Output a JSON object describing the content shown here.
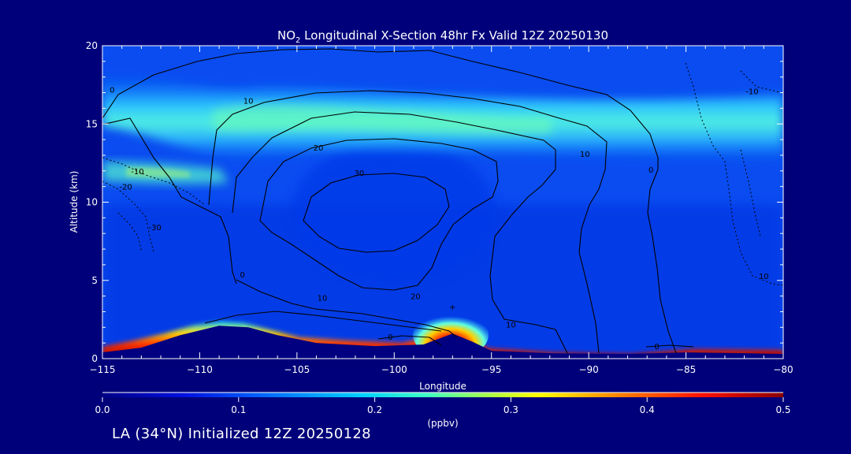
{
  "chart_data": {
    "type": "heatmap",
    "title_prefix": "NO",
    "title_sub": "2",
    "title_rest": " Longitudinal X-Section 48hr  Fx Valid 12Z 20250130",
    "xlabel": "Longitude",
    "ylabel": "Altitude (km)",
    "xlim": [
      -115,
      -80
    ],
    "ylim": [
      0,
      20
    ],
    "x_ticks": [
      -115,
      -110,
      -105,
      -100,
      -95,
      -90,
      -85,
      -80
    ],
    "x_tick_labels": [
      "−115",
      "−110",
      "−105",
      "−100",
      "−95",
      "−90",
      "−85",
      "−80"
    ],
    "y_ticks": [
      0,
      5,
      10,
      15,
      20
    ],
    "y_tick_labels": [
      "0",
      "5",
      "10",
      "15",
      "20"
    ],
    "colorbar": {
      "min": 0.0,
      "max": 0.5,
      "ticks": [
        0.0,
        0.1,
        0.2,
        0.3,
        0.4,
        0.5
      ],
      "tick_labels": [
        "0.0",
        "0.1",
        "0.2",
        "0.3",
        "0.4",
        "0.5"
      ],
      "unit_label": "(ppbv)"
    },
    "no2_layers": [
      {
        "name": "upper",
        "altitude_km": 16,
        "lon_range": [
          -115,
          -80
        ],
        "value": 0.2
      },
      {
        "name": "mid",
        "altitude_km": 12,
        "lon_range": [
          -115,
          -105
        ],
        "value": 0.22
      },
      {
        "name": "near-surface",
        "altitude_km": 0.5,
        "lon_range": [
          -115,
          -80
        ],
        "value": 0.5
      },
      {
        "name": "plume",
        "lon": -97,
        "altitude_km": 1.2,
        "value": 0.5
      }
    ],
    "terrain": [
      [
        -115,
        0.4
      ],
      [
        -113,
        0.7
      ],
      [
        -111,
        1.5
      ],
      [
        -109,
        2.1
      ],
      [
        -107.5,
        2.0
      ],
      [
        -106,
        1.5
      ],
      [
        -104,
        1.0
      ],
      [
        -101,
        0.8
      ],
      [
        -98.5,
        0.9
      ],
      [
        -97,
        1.6
      ],
      [
        -96,
        1.1
      ],
      [
        -95,
        0.5
      ],
      [
        -92,
        0.35
      ],
      [
        -88,
        0.3
      ],
      [
        -85,
        0.4
      ],
      [
        -82,
        0.35
      ],
      [
        -80,
        0.3
      ]
    ],
    "contour_labels": [
      {
        "text": "0",
        "lon": -114.5,
        "alt": 17.0
      },
      {
        "text": "10",
        "lon": -107.5,
        "alt": 16.3
      },
      {
        "text": "20",
        "lon": -103.9,
        "alt": 13.3
      },
      {
        "text": "30",
        "lon": -101.8,
        "alt": 11.7
      },
      {
        "text": "10",
        "lon": -90.2,
        "alt": 12.9
      },
      {
        "text": "0",
        "lon": -86.8,
        "alt": 11.9
      },
      {
        "text": "-10",
        "lon": -81.6,
        "alt": 16.9
      },
      {
        "text": "-10",
        "lon": -113.2,
        "alt": 11.8
      },
      {
        "text": "-20",
        "lon": -113.8,
        "alt": 10.8
      },
      {
        "text": "-30",
        "lon": -112.3,
        "alt": 8.2
      },
      {
        "text": "0",
        "lon": -107.8,
        "alt": 5.2
      },
      {
        "text": "10",
        "lon": -103.7,
        "alt": 3.7
      },
      {
        "text": "20",
        "lon": -98.9,
        "alt": 3.8
      },
      {
        "text": "10",
        "lon": -94.0,
        "alt": 2.0
      },
      {
        "text": "0",
        "lon": -100.2,
        "alt": 1.2
      },
      {
        "text": "0",
        "lon": -86.5,
        "alt": 0.6
      },
      {
        "text": "10",
        "lon": -81.0,
        "alt": 5.1
      }
    ]
  },
  "footer": {
    "text": "LA (34°N) Initialized 12Z 20250128"
  }
}
